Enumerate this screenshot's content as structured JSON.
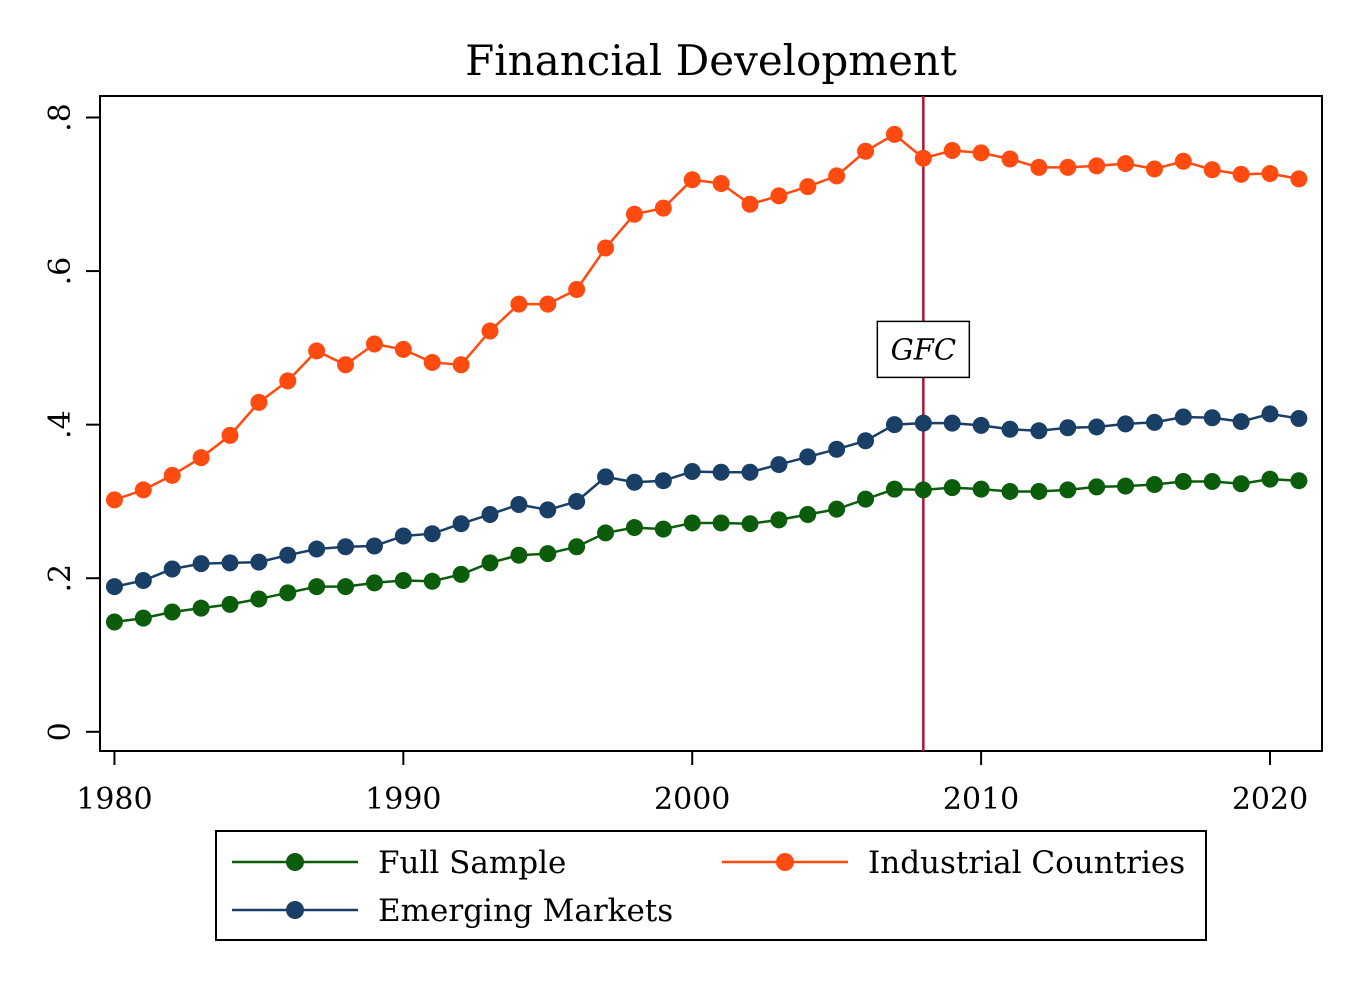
{
  "chart_data": {
    "type": "line",
    "title": "Financial Development",
    "xlabel": "",
    "ylabel": "",
    "xlim": [
      1979.5,
      2021.8
    ],
    "ylim": [
      -0.025,
      0.828
    ],
    "x_ticks": [
      1980,
      1990,
      2000,
      2010,
      2020
    ],
    "x_tick_labels": [
      "1980",
      "1990",
      "2000",
      "2010",
      "2020"
    ],
    "y_ticks": [
      0,
      0.2,
      0.4,
      0.6,
      0.8
    ],
    "y_tick_labels": [
      "0",
      ".2",
      ".4",
      ".6",
      ".8"
    ],
    "grid": false,
    "legend_position": "bottom",
    "x": [
      1980,
      1981,
      1982,
      1983,
      1984,
      1985,
      1986,
      1987,
      1988,
      1989,
      1990,
      1991,
      1992,
      1993,
      1994,
      1995,
      1996,
      1997,
      1998,
      1999,
      2000,
      2001,
      2002,
      2003,
      2004,
      2005,
      2006,
      2007,
      2008,
      2009,
      2010,
      2011,
      2012,
      2013,
      2014,
      2015,
      2016,
      2017,
      2018,
      2019,
      2020,
      2021
    ],
    "series": [
      {
        "name": "Full Sample",
        "color": "#0b5c0b",
        "values": [
          0.143,
          0.148,
          0.156,
          0.161,
          0.166,
          0.173,
          0.181,
          0.189,
          0.189,
          0.194,
          0.197,
          0.196,
          0.205,
          0.22,
          0.23,
          0.232,
          0.241,
          0.259,
          0.266,
          0.264,
          0.272,
          0.272,
          0.271,
          0.276,
          0.283,
          0.29,
          0.303,
          0.316,
          0.315,
          0.318,
          0.316,
          0.313,
          0.313,
          0.315,
          0.319,
          0.32,
          0.322,
          0.326,
          0.326,
          0.323,
          0.329,
          0.327
        ]
      },
      {
        "name": "Emerging Markets",
        "color": "#1a3f66",
        "values": [
          0.189,
          0.197,
          0.212,
          0.219,
          0.22,
          0.221,
          0.23,
          0.238,
          0.241,
          0.242,
          0.255,
          0.258,
          0.271,
          0.283,
          0.296,
          0.289,
          0.3,
          0.332,
          0.325,
          0.327,
          0.339,
          0.338,
          0.338,
          0.348,
          0.358,
          0.368,
          0.379,
          0.4,
          0.402,
          0.402,
          0.399,
          0.394,
          0.392,
          0.396,
          0.397,
          0.401,
          0.403,
          0.41,
          0.409,
          0.404,
          0.414,
          0.408
        ]
      },
      {
        "name": "Industrial Countries",
        "color": "#ff4a10",
        "values": [
          0.302,
          0.315,
          0.334,
          0.357,
          0.386,
          0.429,
          0.457,
          0.496,
          0.478,
          0.505,
          0.498,
          0.481,
          0.478,
          0.522,
          0.557,
          0.557,
          0.576,
          0.63,
          0.674,
          0.682,
          0.719,
          0.714,
          0.687,
          0.698,
          0.71,
          0.724,
          0.756,
          0.778,
          0.747,
          0.757,
          0.754,
          0.746,
          0.735,
          0.735,
          0.737,
          0.74,
          0.733,
          0.743,
          0.732,
          0.726,
          0.727,
          0.72
        ]
      }
    ],
    "vline": {
      "x": 2008,
      "color": "#b01432",
      "label": "GFC",
      "label_y": 0.498
    }
  },
  "legend": {
    "items": [
      {
        "label": "Full Sample",
        "series": 0
      },
      {
        "label": "Industrial Countries",
        "series": 2
      },
      {
        "label": "Emerging Markets",
        "series": 1
      }
    ]
  }
}
